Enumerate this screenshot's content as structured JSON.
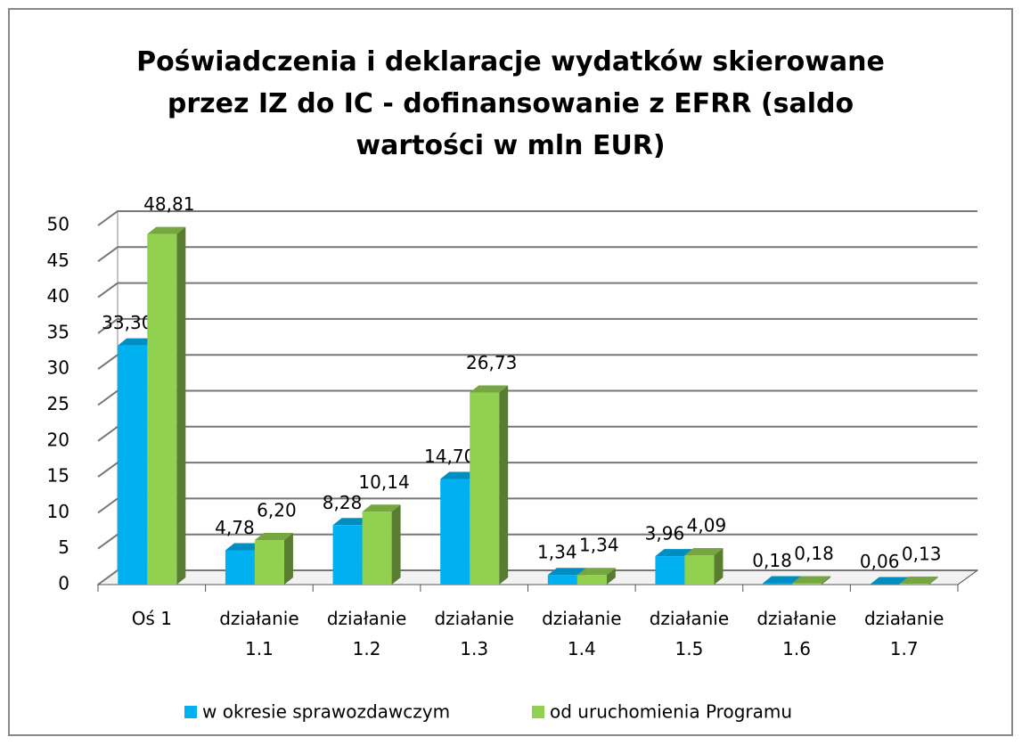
{
  "chart_data": {
    "type": "bar3d",
    "title": "Poświadczenia i deklaracje wydatków skierowane przez IZ do IC - dofinansowanie z EFRR (saldo wartości w mln EUR)",
    "categories": [
      "Oś 1",
      "działanie 1.1",
      "działanie 1.2",
      "działanie 1.3",
      "działanie 1.4",
      "działanie 1.5",
      "działanie 1.6",
      "działanie 1.7"
    ],
    "series": [
      {
        "name": "w okresie sprawozdawczym",
        "color": "#00b0f0",
        "values": [
          33.3,
          4.78,
          8.28,
          14.7,
          1.34,
          3.96,
          0.18,
          0.06
        ],
        "value_labels": [
          "33,30",
          "4,78",
          "8,28",
          "14,70",
          "1,34",
          "3,96",
          "0,18",
          "0,06"
        ]
      },
      {
        "name": "od uruchomienia Programu",
        "color": "#92d050",
        "values": [
          48.81,
          6.2,
          10.14,
          26.73,
          1.34,
          4.09,
          0.18,
          0.13
        ],
        "value_labels": [
          "48,81",
          "6,20",
          "10,14",
          "26,73",
          "1,34",
          "4,09",
          "0,18",
          "0,13"
        ]
      }
    ],
    "ylim": [
      0,
      50
    ],
    "yticks": [
      0,
      5,
      10,
      15,
      20,
      25,
      30,
      35,
      40,
      45,
      50
    ],
    "grid": true,
    "legend": "bottom"
  }
}
